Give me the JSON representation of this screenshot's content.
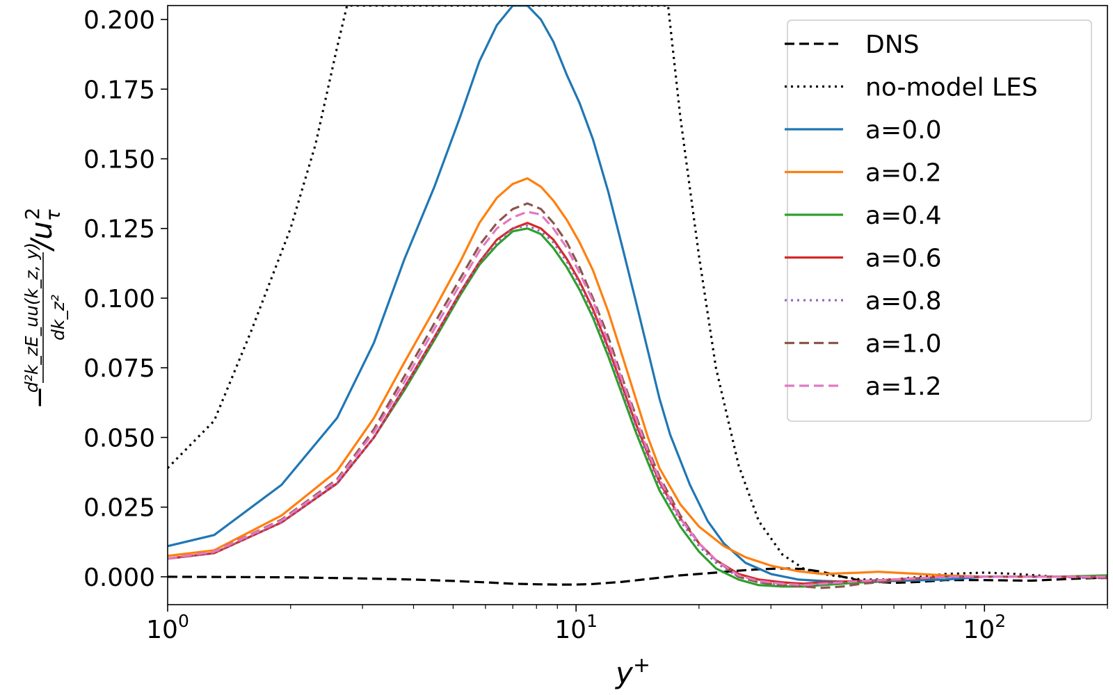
{
  "chart_data": {
    "type": "line",
    "title": "",
    "xlabel": "y",
    "xlabel_sup": "+",
    "ylabel": {
      "prefix": "−",
      "numerator": "d²k_zE_uu(k_z, y)",
      "denominator": "dk_z²",
      "suffix": "/u",
      "suffix_sub": "τ",
      "suffix_sup": "2"
    },
    "xscale": "log",
    "xlim": [
      1,
      200
    ],
    "ylim": [
      -0.01,
      0.205
    ],
    "xticks": [
      {
        "value": 1,
        "base": "10",
        "exp": "0"
      },
      {
        "value": 10,
        "base": "10",
        "exp": "1"
      },
      {
        "value": 100,
        "base": "10",
        "exp": "2"
      }
    ],
    "yticks": [
      {
        "value": 0.0,
        "label": "0.000"
      },
      {
        "value": 0.025,
        "label": "0.025"
      },
      {
        "value": 0.05,
        "label": "0.050"
      },
      {
        "value": 0.075,
        "label": "0.075"
      },
      {
        "value": 0.1,
        "label": "0.100"
      },
      {
        "value": 0.125,
        "label": "0.125"
      },
      {
        "value": 0.15,
        "label": "0.150"
      },
      {
        "value": 0.175,
        "label": "0.175"
      },
      {
        "value": 0.2,
        "label": "0.200"
      }
    ],
    "legend_position": "top-right",
    "series": [
      {
        "name": "DNS",
        "color": "#000000",
        "dash": "dashed",
        "x": [
          1,
          1.5,
          2,
          3,
          4,
          5,
          6,
          7,
          8,
          9,
          10,
          11,
          13,
          15,
          18,
          22,
          25,
          28,
          32,
          36,
          40,
          45,
          50,
          60,
          70,
          80,
          100,
          130,
          160,
          200
        ],
        "y": [
          0,
          -0.0001,
          -0.0002,
          -0.0006,
          -0.001,
          -0.0015,
          -0.002,
          -0.0025,
          -0.0027,
          -0.0028,
          -0.0028,
          -0.0026,
          -0.0018,
          -0.0008,
          0.0005,
          0.0015,
          0.0022,
          0.0027,
          0.003,
          0.0028,
          0.0018,
          0.0,
          -0.0015,
          -0.0022,
          -0.0018,
          -0.0012,
          -0.0012,
          -0.0014,
          -0.0008,
          -0.0003
        ]
      },
      {
        "name": "no-model LES",
        "color": "#000000",
        "dash": "dotted",
        "x": [
          1,
          1.3,
          1.6,
          2.0,
          2.3,
          2.6,
          2.75,
          16.8,
          18,
          20,
          22,
          25,
          28,
          32,
          36,
          40,
          50,
          60,
          70,
          80,
          100,
          120,
          150,
          200
        ],
        "y": [
          0.039,
          0.056,
          0.088,
          0.125,
          0.155,
          0.19,
          0.205,
          0.205,
          0.165,
          0.115,
          0.075,
          0.04,
          0.02,
          0.008,
          0.003,
          0.001,
          -0.001,
          -0.001,
          0.0,
          0.001,
          0.0015,
          0.001,
          0.0,
          -0.0005
        ]
      },
      {
        "name": "a=0.0",
        "color": "#1f77b4",
        "dash": "solid",
        "x": [
          1,
          1.3,
          1.9,
          2.6,
          3.2,
          3.8,
          4.5,
          5.2,
          5.8,
          6.4,
          7.0,
          7.6,
          8.2,
          8.8,
          9.5,
          10.2,
          11,
          12,
          13,
          14,
          15,
          16,
          17,
          19,
          21,
          23,
          26,
          30,
          35,
          40,
          50,
          60,
          80,
          100,
          150,
          200
        ],
        "y": [
          0.011,
          0.015,
          0.033,
          0.057,
          0.084,
          0.114,
          0.14,
          0.165,
          0.185,
          0.198,
          0.205,
          0.205,
          0.2,
          0.192,
          0.18,
          0.17,
          0.157,
          0.138,
          0.118,
          0.099,
          0.081,
          0.064,
          0.051,
          0.033,
          0.02,
          0.012,
          0.005,
          0.001,
          -0.001,
          -0.0015,
          -0.002,
          -0.0015,
          -0.001,
          0.0,
          0.0,
          0.0
        ]
      },
      {
        "name": "a=0.2",
        "color": "#ff7f0e",
        "dash": "solid",
        "x": [
          1,
          1.3,
          1.9,
          2.6,
          3.2,
          3.8,
          4.5,
          5.2,
          5.8,
          6.4,
          7.0,
          7.6,
          8.2,
          8.8,
          9.5,
          10.2,
          11,
          12,
          13,
          14,
          15,
          16,
          18,
          20,
          23,
          26,
          30,
          35,
          40,
          50,
          55,
          60,
          80,
          100,
          150,
          200
        ],
        "y": [
          0.0075,
          0.0095,
          0.022,
          0.038,
          0.057,
          0.077,
          0.096,
          0.113,
          0.127,
          0.136,
          0.141,
          0.143,
          0.14,
          0.135,
          0.128,
          0.12,
          0.11,
          0.095,
          0.079,
          0.064,
          0.05,
          0.039,
          0.026,
          0.018,
          0.011,
          0.007,
          0.004,
          0.002,
          0.001,
          0.0015,
          0.0018,
          0.0015,
          0.0005,
          0.0,
          0.0,
          0.0
        ]
      },
      {
        "name": "a=0.4",
        "color": "#2ca02c",
        "dash": "solid",
        "x": [
          1,
          1.3,
          1.9,
          2.6,
          3.2,
          3.8,
          4.5,
          5.2,
          5.8,
          6.4,
          7.0,
          7.6,
          8.2,
          8.8,
          9.5,
          10.2,
          11,
          12,
          13,
          14,
          15,
          16,
          18,
          20,
          22,
          25,
          28,
          32,
          36,
          40,
          50,
          60,
          80,
          100,
          150,
          200
        ],
        "y": [
          0.0065,
          0.0085,
          0.0195,
          0.0335,
          0.05,
          0.067,
          0.085,
          0.101,
          0.112,
          0.119,
          0.124,
          0.125,
          0.123,
          0.118,
          0.111,
          0.103,
          0.093,
          0.079,
          0.065,
          0.052,
          0.041,
          0.031,
          0.018,
          0.009,
          0.003,
          -0.001,
          -0.003,
          -0.0035,
          -0.0035,
          -0.003,
          -0.002,
          -0.001,
          0.0,
          0.0,
          0.0,
          0.0005
        ]
      },
      {
        "name": "a=0.6",
        "color": "#d62728",
        "dash": "solid",
        "x": [
          1,
          1.3,
          1.9,
          2.6,
          3.2,
          3.8,
          4.5,
          5.2,
          5.8,
          6.4,
          7.0,
          7.6,
          8.2,
          8.8,
          9.5,
          10.2,
          11,
          12,
          13,
          14,
          15,
          16,
          18,
          20,
          22,
          25,
          28,
          32,
          36,
          40,
          50,
          60,
          80,
          100,
          150,
          200
        ],
        "y": [
          0.0065,
          0.0085,
          0.0195,
          0.0335,
          0.05,
          0.068,
          0.086,
          0.102,
          0.113,
          0.121,
          0.125,
          0.127,
          0.125,
          0.121,
          0.114,
          0.106,
          0.096,
          0.082,
          0.068,
          0.055,
          0.044,
          0.034,
          0.021,
          0.012,
          0.006,
          0.001,
          -0.001,
          -0.002,
          -0.0025,
          -0.002,
          -0.0015,
          -0.001,
          0.0,
          0.0,
          0.0,
          0.0
        ]
      },
      {
        "name": "a=0.8",
        "color": "#9467bd",
        "dash": "dotted",
        "x": [
          1,
          1.3,
          1.9,
          2.6,
          3.2,
          3.8,
          4.5,
          5.2,
          5.8,
          6.4,
          7.0,
          7.6,
          8.2,
          8.8,
          9.5,
          10.2,
          11,
          12,
          13,
          14,
          15,
          16,
          18,
          20,
          22,
          25,
          28,
          32,
          36,
          40,
          50,
          60,
          80,
          100,
          150,
          200
        ],
        "y": [
          0.0065,
          0.0085,
          0.0195,
          0.0335,
          0.05,
          0.068,
          0.086,
          0.102,
          0.113,
          0.12,
          0.125,
          0.126,
          0.124,
          0.12,
          0.113,
          0.105,
          0.095,
          0.081,
          0.067,
          0.054,
          0.043,
          0.033,
          0.02,
          0.011,
          0.005,
          0.0,
          -0.002,
          -0.003,
          -0.003,
          -0.0025,
          -0.0015,
          -0.001,
          0.0,
          0.0,
          0.0,
          0.0
        ]
      },
      {
        "name": "a=1.0",
        "color": "#8c564b",
        "dash": "dashed",
        "x": [
          1,
          1.3,
          1.9,
          2.6,
          3.2,
          3.8,
          4.5,
          5.2,
          5.8,
          6.4,
          7.0,
          7.6,
          8.2,
          8.8,
          9.5,
          10.2,
          11,
          12,
          13,
          14,
          15,
          16,
          18,
          20,
          22,
          25,
          28,
          32,
          36,
          40,
          45,
          50,
          60,
          80,
          100,
          150,
          200
        ],
        "y": [
          0.0065,
          0.009,
          0.0205,
          0.035,
          0.053,
          0.072,
          0.091,
          0.107,
          0.119,
          0.127,
          0.132,
          0.134,
          0.132,
          0.127,
          0.12,
          0.111,
          0.1,
          0.086,
          0.071,
          0.058,
          0.046,
          0.036,
          0.022,
          0.012,
          0.006,
          0.0,
          -0.002,
          -0.003,
          -0.0035,
          -0.004,
          -0.0035,
          -0.0025,
          -0.0015,
          0.0,
          0.0,
          0.0,
          -0.0005
        ]
      },
      {
        "name": "a=1.2",
        "color": "#e377c2",
        "dash": "dashed",
        "x": [
          1,
          1.3,
          1.9,
          2.6,
          3.2,
          3.8,
          4.5,
          5.2,
          5.8,
          6.4,
          7.0,
          7.6,
          8.2,
          8.8,
          9.5,
          10.2,
          11,
          12,
          13,
          14,
          15,
          16,
          18,
          20,
          22,
          25,
          28,
          32,
          36,
          40,
          50,
          60,
          80,
          100,
          150,
          200
        ],
        "y": [
          0.0065,
          0.009,
          0.0202,
          0.0345,
          0.052,
          0.07,
          0.089,
          0.105,
          0.117,
          0.125,
          0.129,
          0.131,
          0.13,
          0.125,
          0.118,
          0.109,
          0.099,
          0.084,
          0.07,
          0.057,
          0.045,
          0.035,
          0.021,
          0.012,
          0.006,
          0.0005,
          -0.0015,
          -0.0025,
          -0.003,
          -0.0025,
          -0.0015,
          -0.001,
          0.0,
          0.0,
          0.0,
          0.0
        ]
      }
    ]
  }
}
